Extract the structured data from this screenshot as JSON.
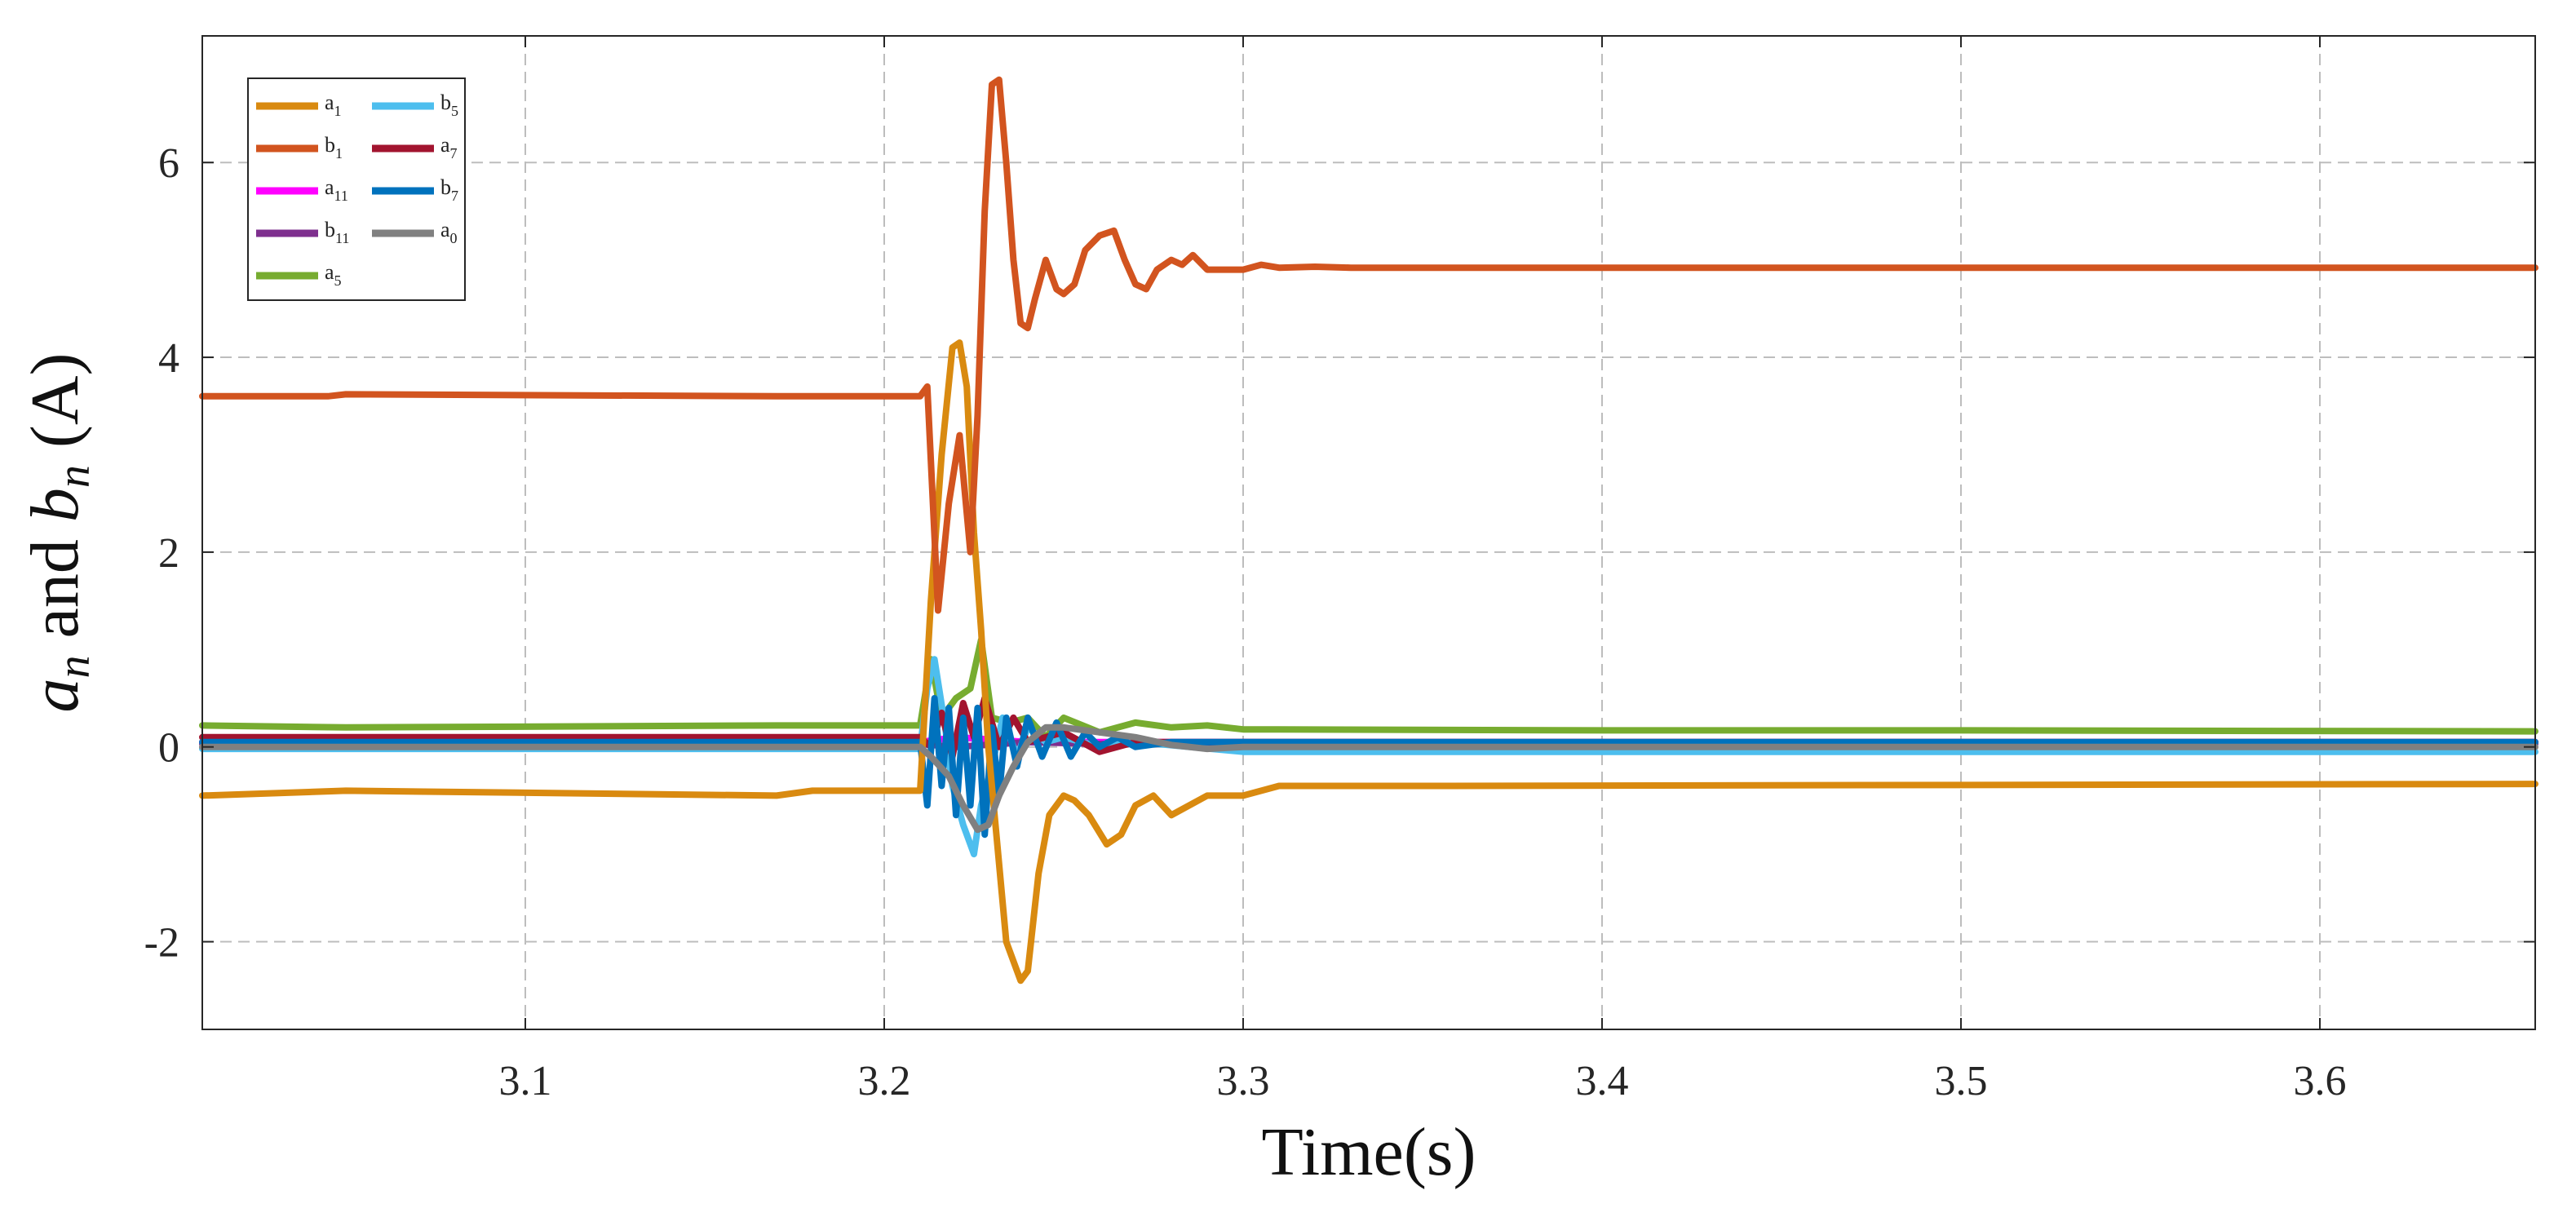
{
  "chart_data": {
    "type": "line",
    "xlabel": "Time(s)",
    "ylabel": {
      "a": "a",
      "a_sub": "n",
      "mid": " and ",
      "b": "b",
      "b_sub": "n",
      "unit": " (A)"
    },
    "xlim": [
      3.01,
      3.66
    ],
    "ylim": [
      -2.9,
      7.3
    ],
    "xticks": [
      3.1,
      3.2,
      3.3,
      3.4,
      3.5,
      3.6
    ],
    "yticks": [
      -2,
      0,
      2,
      4,
      6
    ],
    "grid": true,
    "legend_position": "top-left",
    "legend_columns": 2,
    "series": [
      {
        "name": "a1",
        "label": "a",
        "sub": "1",
        "color": "#D98A10",
        "x": [
          3.01,
          3.05,
          3.17,
          3.18,
          3.21,
          3.213,
          3.216,
          3.219,
          3.221,
          3.223,
          3.225,
          3.227,
          3.229,
          3.231,
          3.234,
          3.238,
          3.24,
          3.243,
          3.246,
          3.25,
          3.253,
          3.257,
          3.262,
          3.266,
          3.27,
          3.275,
          3.28,
          3.29,
          3.3,
          3.31,
          3.35,
          3.66
        ],
        "y": [
          -0.5,
          -0.45,
          -0.5,
          -0.45,
          -0.45,
          1.5,
          3.0,
          4.1,
          4.15,
          3.7,
          2.2,
          1.2,
          0.0,
          -0.8,
          -2.0,
          -2.4,
          -2.3,
          -1.3,
          -0.7,
          -0.5,
          -0.55,
          -0.7,
          -1.0,
          -0.9,
          -0.6,
          -0.5,
          -0.7,
          -0.5,
          -0.5,
          -0.4,
          -0.4,
          -0.38
        ]
      },
      {
        "name": "b1",
        "label": "b",
        "sub": "1",
        "color": "#D2541F",
        "x": [
          3.01,
          3.045,
          3.05,
          3.17,
          3.2,
          3.21,
          3.212,
          3.215,
          3.218,
          3.221,
          3.224,
          3.226,
          3.228,
          3.23,
          3.232,
          3.234,
          3.236,
          3.238,
          3.24,
          3.242,
          3.245,
          3.248,
          3.25,
          3.253,
          3.256,
          3.26,
          3.264,
          3.267,
          3.27,
          3.273,
          3.276,
          3.28,
          3.283,
          3.286,
          3.29,
          3.3,
          3.305,
          3.31,
          3.32,
          3.33,
          3.66
        ],
        "y": [
          3.6,
          3.6,
          3.62,
          3.6,
          3.6,
          3.6,
          3.7,
          1.4,
          2.5,
          3.2,
          2.0,
          3.4,
          5.5,
          6.8,
          6.85,
          6.0,
          5.0,
          4.35,
          4.3,
          4.6,
          5.0,
          4.7,
          4.65,
          4.75,
          5.1,
          5.25,
          5.3,
          5.0,
          4.75,
          4.7,
          4.9,
          5.0,
          4.95,
          5.05,
          4.9,
          4.9,
          4.95,
          4.92,
          4.93,
          4.92,
          4.92
        ]
      },
      {
        "name": "a11",
        "label": "a",
        "sub": "11",
        "color": "#FF00FF",
        "x": [
          3.01,
          3.21,
          3.22,
          3.24,
          3.26,
          3.66
        ],
        "y": [
          0.05,
          0.05,
          0.1,
          0.05,
          0.05,
          0.05
        ]
      },
      {
        "name": "b11",
        "label": "b",
        "sub": "11",
        "color": "#7E2F8E",
        "x": [
          3.01,
          3.21,
          3.22,
          3.24,
          3.26,
          3.66
        ],
        "y": [
          0.03,
          0.03,
          0.0,
          0.05,
          0.03,
          0.03
        ]
      },
      {
        "name": "a5",
        "label": "a",
        "sub": "5",
        "color": "#77AC30",
        "x": [
          3.01,
          3.05,
          3.17,
          3.21,
          3.213,
          3.216,
          3.22,
          3.224,
          3.227,
          3.23,
          3.235,
          3.24,
          3.245,
          3.25,
          3.26,
          3.27,
          3.28,
          3.29,
          3.3,
          3.31,
          3.4,
          3.5,
          3.66
        ],
        "y": [
          0.22,
          0.2,
          0.22,
          0.22,
          0.9,
          0.3,
          0.5,
          0.6,
          1.1,
          0.3,
          0.25,
          0.3,
          0.1,
          0.3,
          0.15,
          0.25,
          0.2,
          0.22,
          0.18,
          0.18,
          0.17,
          0.17,
          0.16
        ]
      },
      {
        "name": "b5",
        "label": "b",
        "sub": "5",
        "color": "#4DBEEE",
        "x": [
          3.01,
          3.21,
          3.212,
          3.214,
          3.217,
          3.219,
          3.222,
          3.225,
          3.227,
          3.23,
          3.233,
          3.237,
          3.24,
          3.245,
          3.25,
          3.26,
          3.27,
          3.3,
          3.4,
          3.66
        ],
        "y": [
          -0.02,
          -0.02,
          0.6,
          0.9,
          0.2,
          -0.4,
          -0.8,
          -1.1,
          -0.6,
          -0.2,
          0.3,
          -0.1,
          0.2,
          0.05,
          0.1,
          0.0,
          0.05,
          -0.05,
          -0.05,
          -0.05
        ]
      },
      {
        "name": "a7",
        "label": "a",
        "sub": "7",
        "color": "#A2142F",
        "x": [
          3.01,
          3.21,
          3.213,
          3.216,
          3.219,
          3.222,
          3.225,
          3.228,
          3.232,
          3.236,
          3.24,
          3.25,
          3.26,
          3.27,
          3.3,
          3.66
        ],
        "y": [
          0.1,
          0.1,
          0.0,
          0.35,
          -0.1,
          0.45,
          0.1,
          0.5,
          0.0,
          0.3,
          0.05,
          0.15,
          -0.05,
          0.05,
          0.05,
          0.05
        ]
      },
      {
        "name": "b7",
        "label": "b",
        "sub": "7",
        "color": "#0072BD",
        "x": [
          3.01,
          3.21,
          3.212,
          3.214,
          3.216,
          3.218,
          3.22,
          3.222,
          3.224,
          3.226,
          3.228,
          3.23,
          3.232,
          3.234,
          3.237,
          3.24,
          3.244,
          3.248,
          3.252,
          3.256,
          3.26,
          3.265,
          3.27,
          3.28,
          3.3,
          3.66
        ],
        "y": [
          0.05,
          0.05,
          -0.6,
          0.5,
          -0.4,
          0.4,
          -0.7,
          0.3,
          -0.6,
          0.4,
          -0.9,
          0.2,
          -0.5,
          0.3,
          -0.2,
          0.3,
          -0.1,
          0.25,
          -0.1,
          0.15,
          0.0,
          0.1,
          0.0,
          0.05,
          0.05,
          0.05
        ]
      },
      {
        "name": "a0",
        "label": "a",
        "sub": "0",
        "color": "#808080",
        "x": [
          3.01,
          3.21,
          3.213,
          3.218,
          3.222,
          3.226,
          3.229,
          3.232,
          3.236,
          3.24,
          3.245,
          3.25,
          3.26,
          3.27,
          3.28,
          3.29,
          3.3,
          3.66
        ],
        "y": [
          0.0,
          0.0,
          -0.1,
          -0.3,
          -0.6,
          -0.85,
          -0.8,
          -0.5,
          -0.2,
          0.05,
          0.2,
          0.2,
          0.15,
          0.1,
          0.02,
          -0.02,
          0.0,
          0.0
        ]
      }
    ],
    "legend_order": [
      "a1",
      "b5",
      "b1",
      "a7",
      "a11",
      "b7",
      "b11",
      "a0",
      "a5"
    ]
  }
}
